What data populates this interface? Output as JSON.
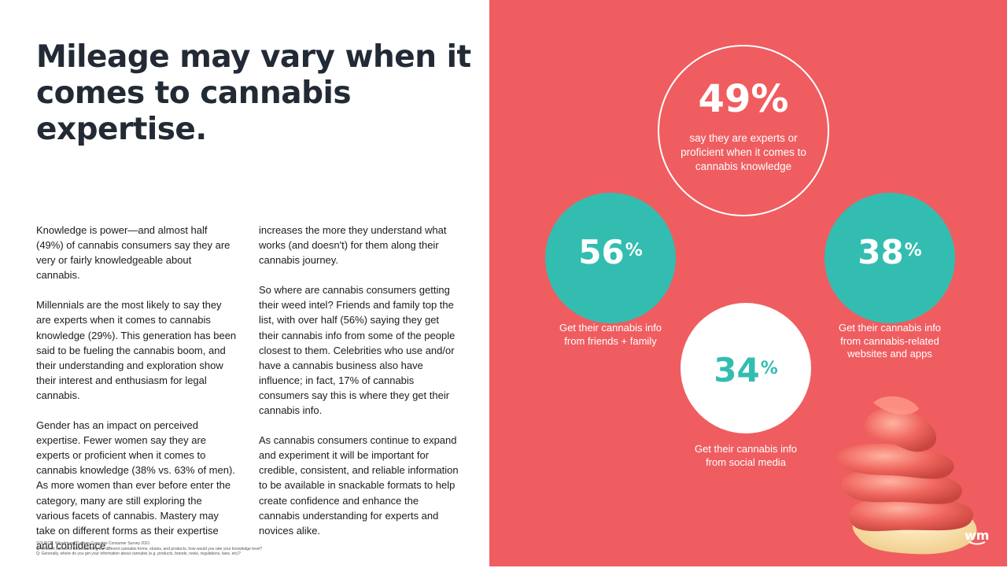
{
  "title": "Mileage may vary when it comes to cannabis expertise.",
  "body": {
    "column1": [
      "Knowledge is power—and almost half (49%) of cannabis consumers say they are very or fairly knowledgeable about cannabis.",
      "Millennials are the most likely to say they are experts when it comes to cannabis knowledge (29%). This generation has been said to be fueling the cannabis boom, and their understanding and exploration show their interest and enthusiasm for legal cannabis.",
      "Gender has an impact on perceived expertise. Fewer women say they are experts or proficient when it comes to cannabis knowledge (38% vs. 63% of men). As more women than ever before enter the category, many are still exploring the various facets of cannabis. Mastery may take on different forms as their expertise and confidence"
    ],
    "column2": [
      "increases the more they understand what works (and doesn't) for them along their cannabis journey.",
      "So where are cannabis consumers getting their weed intel? Friends and family top the list, with over half (56%) saying they get their cannabis info from some of the people closest to them. Celebrities who use and/or have a cannabis business also have influence; in fact, 17% of cannabis consumers say this is where they get their cannabis info.",
      "As cannabis consumers continue to expand and experiment it will be important for credible, consistent, and reliable information to be available in snackable formats to help create confidence and enhance the cannabis understanding for experts and novices alike."
    ]
  },
  "source": {
    "line1": "SOURCE: Weedmaps Custom Cannabis Consumer Survey 2021",
    "line2": "Q: When it comes to understanding the different cannabis forms, strains, and products, how would you rate your knowledge level?",
    "line3": "Q: Generally, where do you get your information about cannabis (e.g. products, brands, news, regulations, laws, etc)?"
  },
  "stats": {
    "experts": {
      "value": "49%",
      "caption": "say they are experts or proficient when it comes to cannabis knowledge"
    },
    "friends": {
      "number": "56",
      "unit": "%",
      "caption_line1": "Get their cannabis info",
      "caption_line2": "from friends + family"
    },
    "websites": {
      "number": "38",
      "unit": "%",
      "caption_line1": "Get their cannabis info",
      "caption_line2": "from cannabis-related",
      "caption_line3": "websites and apps"
    },
    "social": {
      "number": "34",
      "unit": "%",
      "caption_line1": "Get their cannabis info",
      "caption_line2": "from social media"
    }
  },
  "logo": "wm",
  "colors": {
    "coral": "#ef5d60",
    "teal": "#33bdb1",
    "heading": "#222a35"
  }
}
